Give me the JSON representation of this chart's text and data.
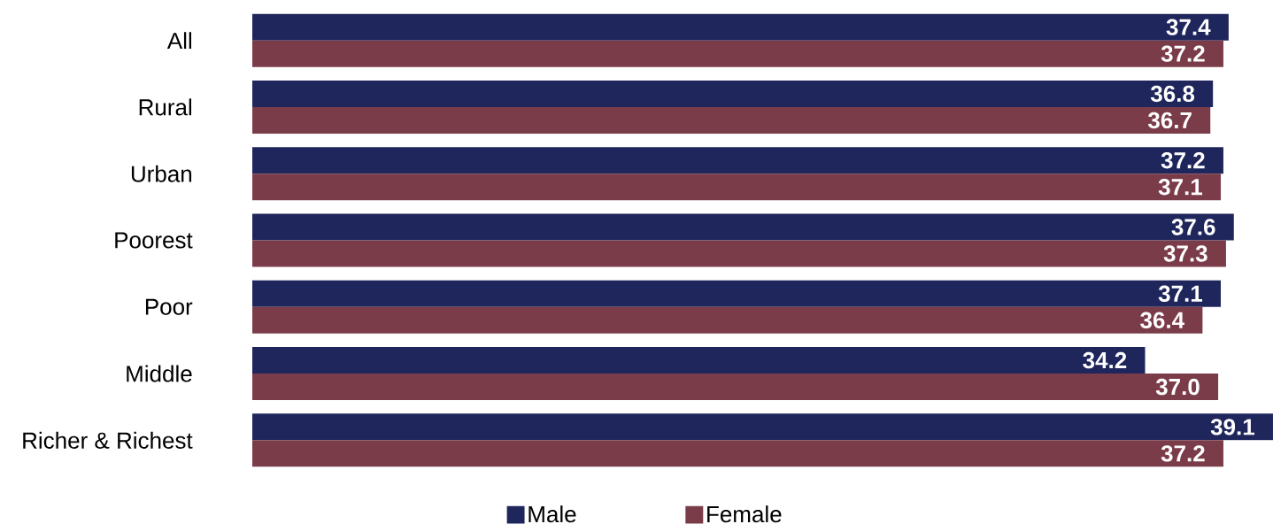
{
  "chart_data": {
    "type": "bar",
    "orientation": "horizontal",
    "categories": [
      "All",
      "Rural",
      "Urban",
      "Poorest",
      "Poor",
      "Middle",
      "Richer & Richest"
    ],
    "series": [
      {
        "name": "Male",
        "color": "#1f265c",
        "values": [
          37.4,
          36.8,
          37.2,
          37.6,
          37.1,
          34.2,
          39.1
        ],
        "value_labels": [
          "37.4",
          "36.8",
          "37.2",
          "37.6",
          "37.1",
          "34.2",
          "39.1"
        ]
      },
      {
        "name": "Female",
        "color": "#7b3c4a",
        "values": [
          37.2,
          36.7,
          37.1,
          37.3,
          36.4,
          37.0,
          37.2
        ],
        "value_labels": [
          "37.2",
          "36.7",
          "37.1",
          "37.3",
          "36.4",
          "37.0",
          "37.2"
        ]
      }
    ],
    "xlim": [
      0,
      39.1
    ],
    "legend": "bottom",
    "tick_labels": "y"
  }
}
